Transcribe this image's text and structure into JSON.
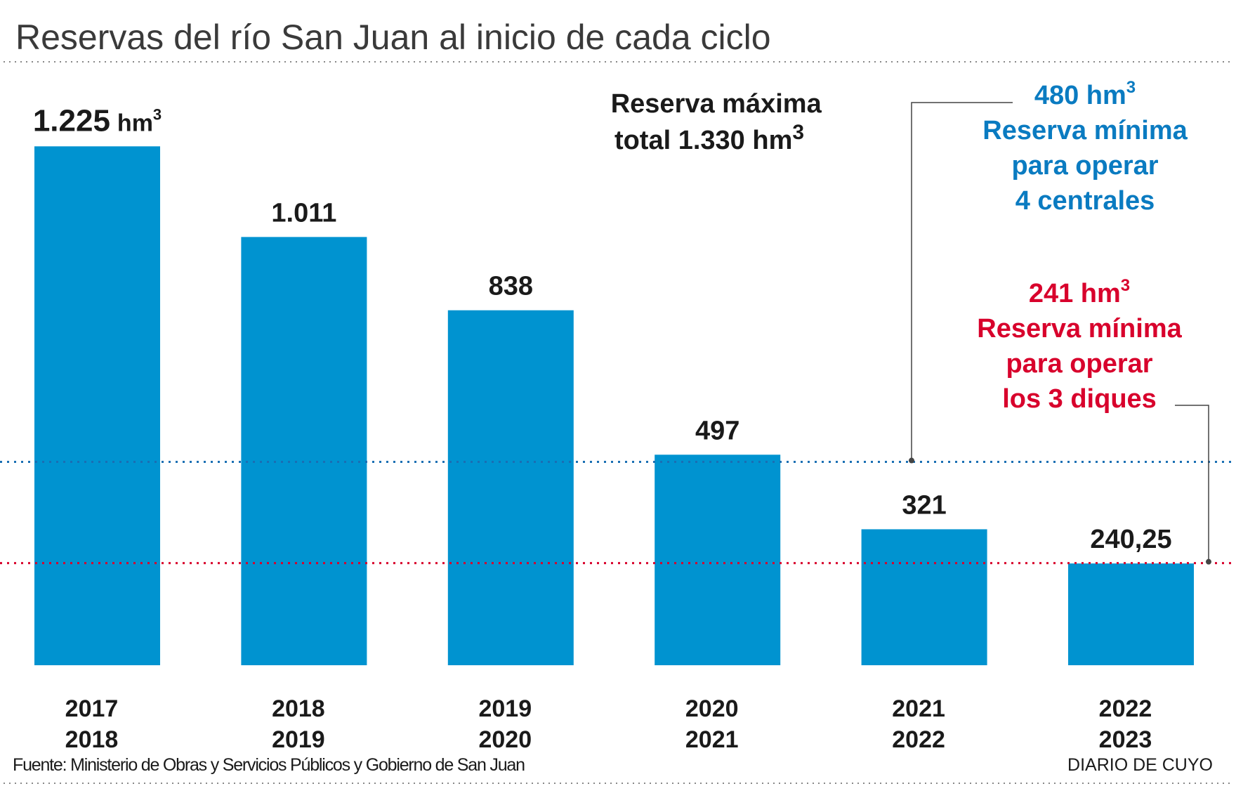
{
  "title": "Reservas del río San Juan al inicio de cada ciclo",
  "colors": {
    "bar": "#0093d0",
    "blue_line": "#1a6fb3",
    "blue_text": "#0a7bc1",
    "red": "#d8002c",
    "text": "#1a1a1a",
    "title": "#3a3a3a"
  },
  "chart_data": {
    "type": "bar",
    "title": "Reservas del río San Juan al inicio de cada ciclo",
    "categories": [
      [
        "2017",
        "2018"
      ],
      [
        "2018",
        "2019"
      ],
      [
        "2019",
        "2020"
      ],
      [
        "2020",
        "2021"
      ],
      [
        "2021",
        "2022"
      ],
      [
        "2022",
        "2023"
      ]
    ],
    "values": [
      1225,
      1011,
      838,
      497,
      321,
      240.25
    ],
    "value_labels": [
      "1.225",
      "1.011",
      "838",
      "497",
      "321",
      "240,25"
    ],
    "first_label_unit": "hm",
    "unit_sup": "3",
    "ylim": [
      0,
      1330
    ],
    "reference_lines": [
      {
        "value": 480,
        "label_value": "480 hm",
        "lines": [
          "Reserva mínima",
          "para operar",
          "4 centrales"
        ],
        "color": "#1a6fb3"
      },
      {
        "value": 241,
        "label_value": "241 hm",
        "lines": [
          "Reserva mínima",
          "para operar",
          "los 3 diques"
        ],
        "color": "#d8002c"
      }
    ],
    "annotation": {
      "line1": "Reserva máxima",
      "line2": "total 1.330 hm"
    }
  },
  "footer": {
    "source": "Fuente: Ministerio de Obras y Servicios Públicos y Gobierno de San Juan",
    "brand": "DIARIO DE CUYO"
  }
}
